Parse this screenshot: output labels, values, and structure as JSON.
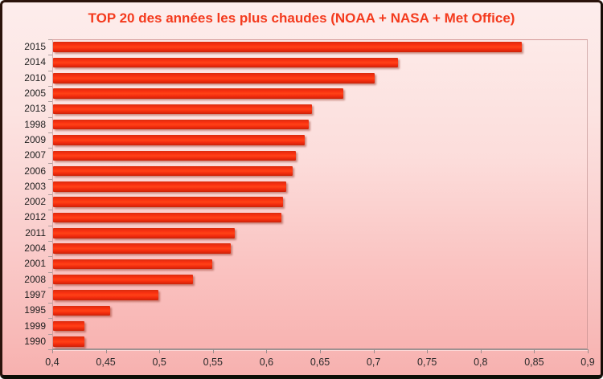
{
  "chart_data": {
    "type": "bar",
    "orientation": "horizontal",
    "title": "TOP 20 des années les plus chaudes (NOAA + NASA + Met Office)",
    "categories": [
      "2015",
      "2014",
      "2010",
      "2005",
      "2013",
      "1998",
      "2009",
      "2007",
      "2006",
      "2003",
      "2002",
      "2012",
      "2011",
      "2004",
      "2001",
      "2008",
      "1997",
      "1995",
      "1999",
      "1990"
    ],
    "values": [
      0.838,
      0.722,
      0.7,
      0.671,
      0.642,
      0.639,
      0.635,
      0.627,
      0.624,
      0.618,
      0.615,
      0.613,
      0.57,
      0.566,
      0.549,
      0.531,
      0.498,
      0.453,
      0.429,
      0.429
    ],
    "xlabel": "",
    "ylabel": "",
    "xlim": [
      0.4,
      0.9
    ],
    "x_tick_step": 0.05,
    "x_tick_labels": [
      "0,4",
      "0,45",
      "0,5",
      "0,55",
      "0,6",
      "0,65",
      "0,7",
      "0,75",
      "0,8",
      "0,85",
      "0,9"
    ],
    "grid": false,
    "legend": false,
    "colors": {
      "bar": "#f52b0d",
      "title": "#f43a1d",
      "background_top": "#fdedec",
      "background_bottom": "#f7b1af",
      "frame_border": "#2b130b",
      "axis_line": "#9e9191",
      "tick_text": "#2a2a2a"
    }
  }
}
